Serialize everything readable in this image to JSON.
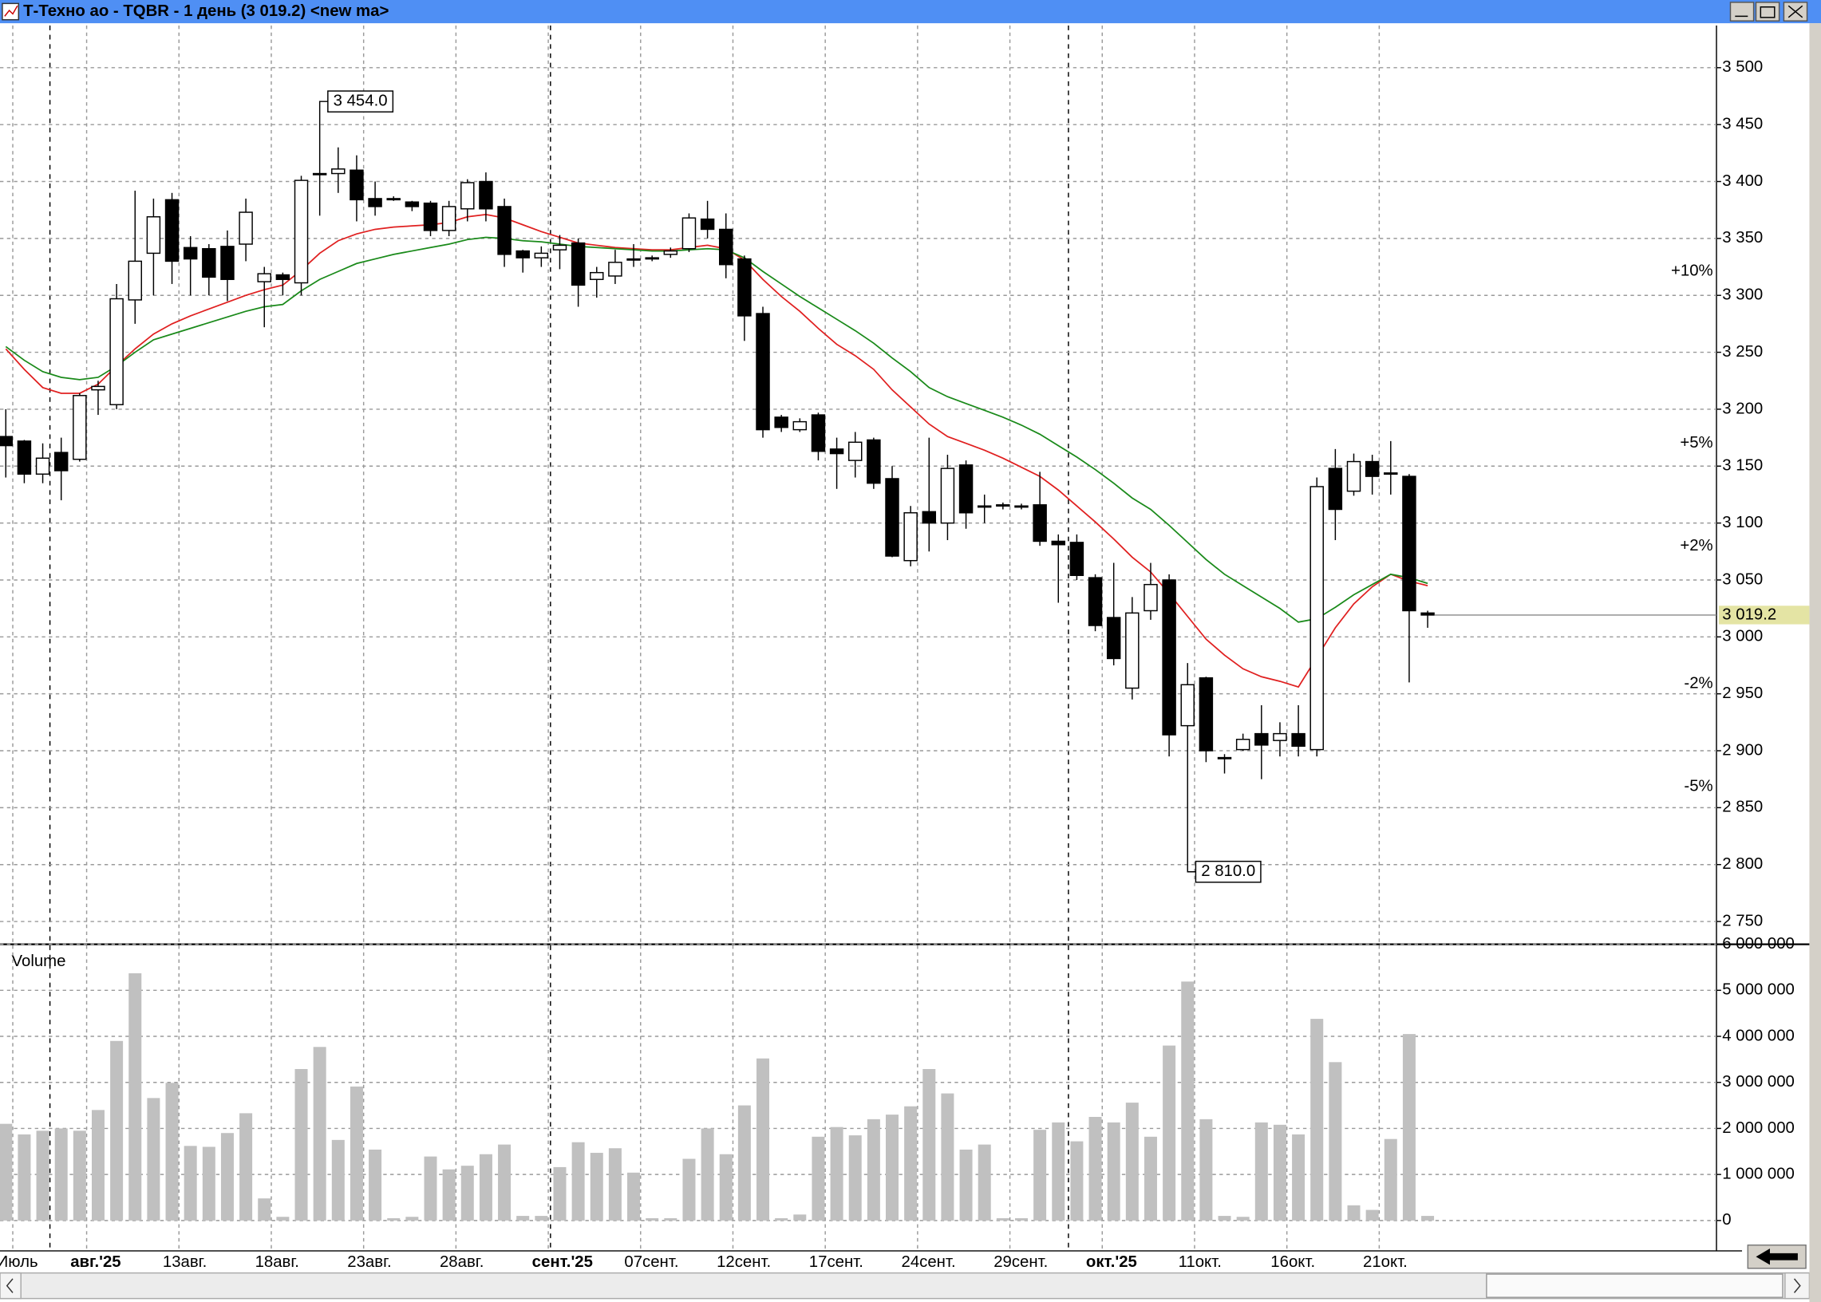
{
  "window": {
    "title": "Т-Техно ао - TQBR - 1 день (3 019.2) <new ma>"
  },
  "chart_data": [
    {
      "type": "candlestick",
      "open": [
        3176,
        3172,
        3143,
        3162,
        3156,
        3217,
        3204,
        3296,
        3337,
        3384,
        3342,
        3341,
        3343,
        3345,
        3312,
        3318,
        3311,
        3406,
        3407,
        3410,
        3385,
        3385,
        3382,
        3381,
        3357,
        3376,
        3400,
        3378,
        3339,
        3333,
        3340,
        3346,
        3314,
        3317,
        3332,
        3333,
        3336,
        3341,
        3367,
        3358,
        3332,
        3284,
        3193,
        3182,
        3195,
        3165,
        3155,
        3173,
        3139,
        3067,
        3110,
        3100,
        3151,
        3115,
        3116,
        3115,
        3116,
        3084,
        3083,
        3052,
        3017,
        2955,
        3023,
        3050,
        2922,
        2964,
        2894,
        2901,
        2915,
        2909,
        2915,
        2901,
        3148,
        3128,
        3154,
        3144,
        3141,
        3021
      ],
      "high": [
        3200,
        3173,
        3170,
        3175,
        3214,
        3225,
        3310,
        3392,
        3385,
        3390,
        3352,
        3345,
        3357,
        3385,
        3325,
        3320,
        3405,
        3454,
        3430,
        3423,
        3400,
        3387,
        3383,
        3383,
        3383,
        3402,
        3408,
        3385,
        3340,
        3343,
        3353,
        3350,
        3325,
        3340,
        3345,
        3335,
        3342,
        3372,
        3383,
        3372,
        3335,
        3290,
        3195,
        3192,
        3197,
        3175,
        3180,
        3175,
        3150,
        3115,
        3175,
        3160,
        3155,
        3125,
        3118,
        3117,
        3145,
        3090,
        3090,
        3055,
        3065,
        3035,
        3065,
        3055,
        2977,
        2965,
        2897,
        2915,
        2940,
        2925,
        2940,
        3140,
        3165,
        3161,
        3160,
        3172,
        3143,
        3023
      ],
      "low": [
        3140,
        3135,
        3135,
        3120,
        3154,
        3195,
        3200,
        3275,
        3300,
        3310,
        3300,
        3300,
        3295,
        3330,
        3272,
        3300,
        3300,
        3370,
        3390,
        3365,
        3370,
        3383,
        3374,
        3352,
        3352,
        3365,
        3365,
        3325,
        3320,
        3325,
        3323,
        3290,
        3298,
        3310,
        3325,
        3330,
        3333,
        3338,
        3350,
        3315,
        3260,
        3175,
        3180,
        3180,
        3155,
        3130,
        3140,
        3130,
        3070,
        3062,
        3075,
        3085,
        3095,
        3100,
        3112,
        3112,
        3080,
        3030,
        3050,
        3005,
        2975,
        2945,
        3015,
        2895,
        2810,
        2890,
        2880,
        2900,
        2875,
        2895,
        2895,
        2895,
        3085,
        3124,
        3125,
        3125,
        2960,
        3008
      ],
      "close": [
        3168,
        3143,
        3157,
        3146,
        3212,
        3220,
        3297,
        3330,
        3369,
        3330,
        3332,
        3316,
        3314,
        3373,
        3319,
        3314,
        3401,
        3407,
        3411,
        3384,
        3378,
        3385,
        3378,
        3357,
        3378,
        3399,
        3376,
        3336,
        3333,
        3337,
        3344,
        3309,
        3320,
        3329,
        3332,
        3333,
        3339,
        3368,
        3358,
        3327,
        3282,
        3182,
        3184,
        3189,
        3163,
        3161,
        3171,
        3135,
        3071,
        3109,
        3100,
        3148,
        3109,
        3115,
        3116,
        3115,
        3084,
        3081,
        3054,
        3010,
        2981,
        3021,
        3046,
        2914,
        2958,
        2900,
        2894,
        2910,
        2905,
        2915,
        2904,
        3132,
        3112,
        3154,
        3141,
        3144,
        3023,
        3019.2
      ],
      "lines": [
        {
          "color": "#e02020",
          "values": [
            3253,
            3235,
            3219,
            3214,
            3214,
            3222,
            3238,
            3253,
            3266,
            3275,
            3282,
            3288,
            3294,
            3300,
            3305,
            3309,
            3322,
            3337,
            3348,
            3354,
            3358,
            3360,
            3361,
            3362,
            3364,
            3369,
            3371,
            3368,
            3362,
            3356,
            3351,
            3346,
            3344,
            3342,
            3341,
            3340,
            3340,
            3342,
            3344,
            3341,
            3331,
            3314,
            3299,
            3286,
            3271,
            3257,
            3247,
            3235,
            3217,
            3202,
            3187,
            3176,
            3170,
            3164,
            3157,
            3149,
            3141,
            3129,
            3115,
            3101,
            3086,
            3070,
            3057,
            3038,
            3018,
            2998,
            2984,
            2972,
            2965,
            2961,
            2956,
            2982,
            3008,
            3029,
            3044,
            3055,
            3049,
            3045
          ]
        },
        {
          "color": "#1a8a1a",
          "values": [
            3255,
            3243,
            3233,
            3228,
            3226,
            3228,
            3238,
            3250,
            3261,
            3266,
            3271,
            3276,
            3281,
            3286,
            3290,
            3292,
            3304,
            3314,
            3321,
            3328,
            3332,
            3336,
            3339,
            3342,
            3345,
            3349,
            3351,
            3350,
            3348,
            3347,
            3345,
            3343,
            3342,
            3341,
            3340,
            3339,
            3339,
            3340,
            3341,
            3340,
            3333,
            3321,
            3310,
            3299,
            3289,
            3279,
            3269,
            3258,
            3245,
            3233,
            3219,
            3211,
            3205,
            3199,
            3193,
            3186,
            3178,
            3168,
            3158,
            3147,
            3135,
            3122,
            3112,
            3098,
            3083,
            3068,
            3055,
            3045,
            3035,
            3025,
            3013,
            3016,
            3026,
            3037,
            3046,
            3055,
            3052,
            3047
          ]
        }
      ],
      "annotations": [
        {
          "value": 3454,
          "label": "3 454.0"
        },
        {
          "value": 2810,
          "label": "2 810.0"
        }
      ],
      "last": {
        "value": 3019.2,
        "label": "3 019.2"
      },
      "percent_levels": [
        {
          "value": 10,
          "label": "+10%",
          "color": "#2e9e2e"
        },
        {
          "value": 5,
          "label": "+5%",
          "color": "#2e9e2e"
        },
        {
          "value": 2,
          "label": "+2%",
          "color": "#2e9e2e"
        },
        {
          "value": -2,
          "label": "-2%",
          "color": "#c83030"
        },
        {
          "value": -5,
          "label": "-5%",
          "color": "#c83030"
        }
      ],
      "ylim": [
        2730,
        3537
      ],
      "yticks": [
        {
          "value": 2750,
          "label": "2 750"
        },
        {
          "value": 2800,
          "label": "2 800"
        },
        {
          "value": 2850,
          "label": "2 850"
        },
        {
          "value": 2900,
          "label": "2 900"
        },
        {
          "value": 2950,
          "label": "2 950"
        },
        {
          "value": 3000,
          "label": "3 000"
        },
        {
          "value": 3050,
          "label": "3 050"
        },
        {
          "value": 3100,
          "label": "3 100"
        },
        {
          "value": 3150,
          "label": "3 150"
        },
        {
          "value": 3200,
          "label": "3 200"
        },
        {
          "value": 3250,
          "label": "3 250"
        },
        {
          "value": 3300,
          "label": "3 300"
        },
        {
          "value": 3350,
          "label": "3 350"
        },
        {
          "value": 3400,
          "label": "3 400"
        },
        {
          "value": 3450,
          "label": "3 450"
        },
        {
          "value": 3500,
          "label": "3 500"
        }
      ],
      "grid": true
    },
    {
      "type": "bar",
      "title": "Volume",
      "color": "#c0c0c0",
      "categories": [
        "Июль",
        null,
        null,
        null,
        "авг.'25",
        null,
        null,
        null,
        null,
        "13авг.",
        null,
        null,
        null,
        null,
        "18авг.",
        null,
        null,
        null,
        null,
        "23авг.",
        null,
        null,
        null,
        null,
        "28авг.",
        null,
        null,
        null,
        null,
        "сент.'25",
        null,
        null,
        null,
        null,
        "07сент.",
        null,
        null,
        null,
        null,
        "12сент.",
        null,
        null,
        null,
        null,
        "17сент.",
        null,
        null,
        null,
        null,
        "24сент.",
        null,
        null,
        null,
        null,
        "29сент.",
        null,
        null,
        null,
        null,
        "окт.'25",
        null,
        null,
        null,
        null,
        "11окт.",
        null,
        null,
        null,
        null,
        "16окт.",
        null,
        null,
        null,
        null,
        "21окт.",
        null,
        null,
        null
      ],
      "values": [
        2100000,
        1870000,
        1950000,
        2000000,
        1950000,
        2400000,
        3900000,
        5370000,
        2660000,
        2990000,
        1620000,
        1600000,
        1900000,
        2330000,
        480000,
        80000,
        3290000,
        3770000,
        1750000,
        2910000,
        1540000,
        50000,
        80000,
        1390000,
        1110000,
        1190000,
        1440000,
        1650000,
        100000,
        100000,
        1160000,
        1700000,
        1470000,
        1570000,
        1040000,
        50000,
        50000,
        1340000,
        2000000,
        1440000,
        2500000,
        3520000,
        50000,
        130000,
        1820000,
        2030000,
        1850000,
        2200000,
        2300000,
        2480000,
        3290000,
        2760000,
        1540000,
        1650000,
        50000,
        50000,
        1970000,
        2130000,
        1720000,
        2250000,
        2130000,
        2560000,
        1820000,
        3800000,
        5190000,
        2200000,
        100000,
        80000,
        2130000,
        2080000,
        1870000,
        4380000,
        3440000,
        330000,
        230000,
        1770000,
        4050000,
        100000
      ],
      "ylim": [
        -660000,
        6000000
      ],
      "yticks": [
        0,
        {
          "value": 1000000,
          "label": "1 000 000"
        },
        {
          "value": 2000000,
          "label": "2 000 000"
        },
        {
          "value": 3000000,
          "label": "3 000 000"
        },
        {
          "value": 4000000,
          "label": "4 000 000"
        },
        {
          "value": 5000000,
          "label": "5 000 000"
        },
        {
          "value": 6000000,
          "label": "6 000 000"
        }
      ],
      "grid": true
    }
  ]
}
